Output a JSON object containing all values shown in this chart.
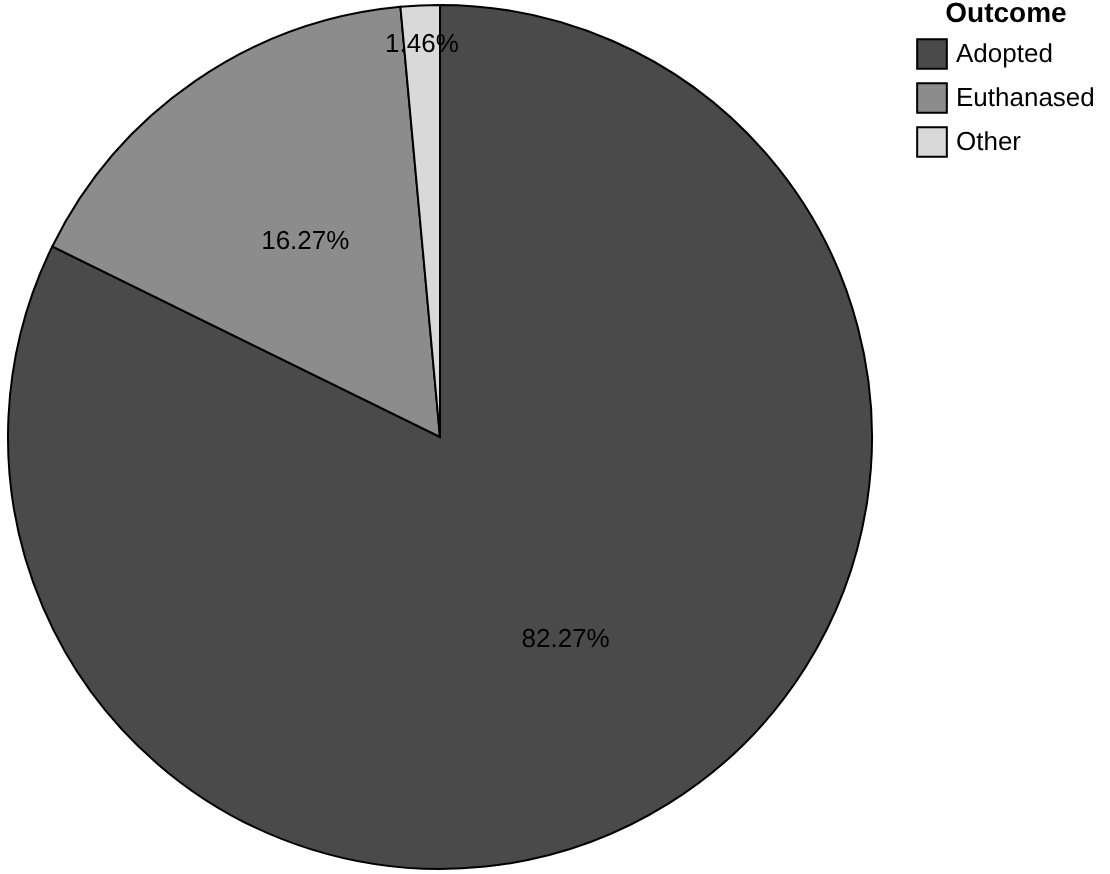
{
  "chart_data": {
    "type": "pie",
    "legend_title": "Outcome",
    "categories": [
      "Adopted",
      "Euthanased",
      "Other"
    ],
    "values": [
      82.27,
      16.27,
      1.46
    ],
    "colors": [
      "#4a4a4a",
      "#8c8c8c",
      "#d9d9d9"
    ],
    "value_labels": [
      "82.27%",
      "16.27%",
      "1.46%"
    ],
    "legend": "right"
  }
}
